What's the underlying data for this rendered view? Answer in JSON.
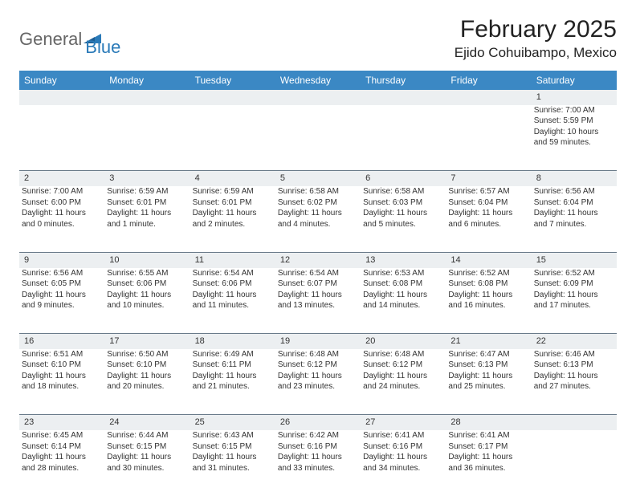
{
  "brand": {
    "part1": "General",
    "part2": "Blue"
  },
  "title": "February 2025",
  "location": "Ejido Cohuibampo, Mexico",
  "colors": {
    "header_bg": "#3b88c4",
    "header_fg": "#ffffff",
    "daynum_bg": "#eceff1",
    "row_sep": "#6a7b8a",
    "text": "#333333",
    "background": "#ffffff",
    "brand_accent": "#2a7ab8"
  },
  "typography": {
    "title_fontsize": 30,
    "location_fontsize": 17,
    "header_fontsize": 12,
    "daynum_fontsize": 11,
    "cell_fontsize": 10
  },
  "day_headers": [
    "Sunday",
    "Monday",
    "Tuesday",
    "Wednesday",
    "Thursday",
    "Friday",
    "Saturday"
  ],
  "weeks": [
    {
      "nums": [
        "",
        "",
        "",
        "",
        "",
        "",
        "1"
      ],
      "cells": [
        null,
        null,
        null,
        null,
        null,
        null,
        {
          "sunrise": "Sunrise: 7:00 AM",
          "sunset": "Sunset: 5:59 PM",
          "d1": "Daylight: 10 hours",
          "d2": "and 59 minutes."
        }
      ]
    },
    {
      "nums": [
        "2",
        "3",
        "4",
        "5",
        "6",
        "7",
        "8"
      ],
      "cells": [
        {
          "sunrise": "Sunrise: 7:00 AM",
          "sunset": "Sunset: 6:00 PM",
          "d1": "Daylight: 11 hours",
          "d2": "and 0 minutes."
        },
        {
          "sunrise": "Sunrise: 6:59 AM",
          "sunset": "Sunset: 6:01 PM",
          "d1": "Daylight: 11 hours",
          "d2": "and 1 minute."
        },
        {
          "sunrise": "Sunrise: 6:59 AM",
          "sunset": "Sunset: 6:01 PM",
          "d1": "Daylight: 11 hours",
          "d2": "and 2 minutes."
        },
        {
          "sunrise": "Sunrise: 6:58 AM",
          "sunset": "Sunset: 6:02 PM",
          "d1": "Daylight: 11 hours",
          "d2": "and 4 minutes."
        },
        {
          "sunrise": "Sunrise: 6:58 AM",
          "sunset": "Sunset: 6:03 PM",
          "d1": "Daylight: 11 hours",
          "d2": "and 5 minutes."
        },
        {
          "sunrise": "Sunrise: 6:57 AM",
          "sunset": "Sunset: 6:04 PM",
          "d1": "Daylight: 11 hours",
          "d2": "and 6 minutes."
        },
        {
          "sunrise": "Sunrise: 6:56 AM",
          "sunset": "Sunset: 6:04 PM",
          "d1": "Daylight: 11 hours",
          "d2": "and 7 minutes."
        }
      ]
    },
    {
      "nums": [
        "9",
        "10",
        "11",
        "12",
        "13",
        "14",
        "15"
      ],
      "cells": [
        {
          "sunrise": "Sunrise: 6:56 AM",
          "sunset": "Sunset: 6:05 PM",
          "d1": "Daylight: 11 hours",
          "d2": "and 9 minutes."
        },
        {
          "sunrise": "Sunrise: 6:55 AM",
          "sunset": "Sunset: 6:06 PM",
          "d1": "Daylight: 11 hours",
          "d2": "and 10 minutes."
        },
        {
          "sunrise": "Sunrise: 6:54 AM",
          "sunset": "Sunset: 6:06 PM",
          "d1": "Daylight: 11 hours",
          "d2": "and 11 minutes."
        },
        {
          "sunrise": "Sunrise: 6:54 AM",
          "sunset": "Sunset: 6:07 PM",
          "d1": "Daylight: 11 hours",
          "d2": "and 13 minutes."
        },
        {
          "sunrise": "Sunrise: 6:53 AM",
          "sunset": "Sunset: 6:08 PM",
          "d1": "Daylight: 11 hours",
          "d2": "and 14 minutes."
        },
        {
          "sunrise": "Sunrise: 6:52 AM",
          "sunset": "Sunset: 6:08 PM",
          "d1": "Daylight: 11 hours",
          "d2": "and 16 minutes."
        },
        {
          "sunrise": "Sunrise: 6:52 AM",
          "sunset": "Sunset: 6:09 PM",
          "d1": "Daylight: 11 hours",
          "d2": "and 17 minutes."
        }
      ]
    },
    {
      "nums": [
        "16",
        "17",
        "18",
        "19",
        "20",
        "21",
        "22"
      ],
      "cells": [
        {
          "sunrise": "Sunrise: 6:51 AM",
          "sunset": "Sunset: 6:10 PM",
          "d1": "Daylight: 11 hours",
          "d2": "and 18 minutes."
        },
        {
          "sunrise": "Sunrise: 6:50 AM",
          "sunset": "Sunset: 6:10 PM",
          "d1": "Daylight: 11 hours",
          "d2": "and 20 minutes."
        },
        {
          "sunrise": "Sunrise: 6:49 AM",
          "sunset": "Sunset: 6:11 PM",
          "d1": "Daylight: 11 hours",
          "d2": "and 21 minutes."
        },
        {
          "sunrise": "Sunrise: 6:48 AM",
          "sunset": "Sunset: 6:12 PM",
          "d1": "Daylight: 11 hours",
          "d2": "and 23 minutes."
        },
        {
          "sunrise": "Sunrise: 6:48 AM",
          "sunset": "Sunset: 6:12 PM",
          "d1": "Daylight: 11 hours",
          "d2": "and 24 minutes."
        },
        {
          "sunrise": "Sunrise: 6:47 AM",
          "sunset": "Sunset: 6:13 PM",
          "d1": "Daylight: 11 hours",
          "d2": "and 25 minutes."
        },
        {
          "sunrise": "Sunrise: 6:46 AM",
          "sunset": "Sunset: 6:13 PM",
          "d1": "Daylight: 11 hours",
          "d2": "and 27 minutes."
        }
      ]
    },
    {
      "nums": [
        "23",
        "24",
        "25",
        "26",
        "27",
        "28",
        ""
      ],
      "cells": [
        {
          "sunrise": "Sunrise: 6:45 AM",
          "sunset": "Sunset: 6:14 PM",
          "d1": "Daylight: 11 hours",
          "d2": "and 28 minutes."
        },
        {
          "sunrise": "Sunrise: 6:44 AM",
          "sunset": "Sunset: 6:15 PM",
          "d1": "Daylight: 11 hours",
          "d2": "and 30 minutes."
        },
        {
          "sunrise": "Sunrise: 6:43 AM",
          "sunset": "Sunset: 6:15 PM",
          "d1": "Daylight: 11 hours",
          "d2": "and 31 minutes."
        },
        {
          "sunrise": "Sunrise: 6:42 AM",
          "sunset": "Sunset: 6:16 PM",
          "d1": "Daylight: 11 hours",
          "d2": "and 33 minutes."
        },
        {
          "sunrise": "Sunrise: 6:41 AM",
          "sunset": "Sunset: 6:16 PM",
          "d1": "Daylight: 11 hours",
          "d2": "and 34 minutes."
        },
        {
          "sunrise": "Sunrise: 6:41 AM",
          "sunset": "Sunset: 6:17 PM",
          "d1": "Daylight: 11 hours",
          "d2": "and 36 minutes."
        },
        null
      ]
    }
  ]
}
